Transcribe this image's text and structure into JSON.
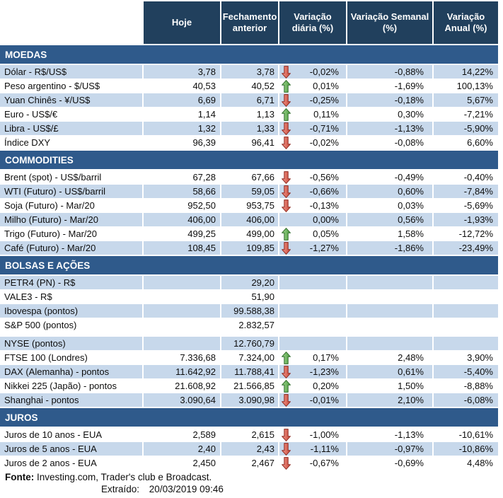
{
  "colors": {
    "header_bg": "#21405D",
    "section_bg": "#2F5A8B",
    "row_shaded": "#C7D8EB",
    "arrow_up_fill": "#5FAE54",
    "arrow_up_stroke": "#2E6B2A",
    "arrow_down_fill": "#E06A5C",
    "arrow_down_stroke": "#8F2A21"
  },
  "header": {
    "columns": [
      "Hoje",
      "Fechamento anterior",
      "Variação diária (%)",
      "Variação Semanal (%)",
      "Variação Anual (%)"
    ]
  },
  "sections": [
    {
      "id": "moedas",
      "title": "MOEDAS",
      "rows": [
        {
          "label": "Dólar - R$/US$",
          "hoje": "3,78",
          "fech": "3,78",
          "arrow": "down",
          "vdia": "-0,02%",
          "vsem": "-0,88%",
          "vanu": "14,22%",
          "shaded": true
        },
        {
          "label": "Peso argentino - $/US$",
          "hoje": "40,53",
          "fech": "40,52",
          "arrow": "up",
          "vdia": "0,01%",
          "vsem": "-1,69%",
          "vanu": "100,13%",
          "shaded": false
        },
        {
          "label": "Yuan Chinês - ¥/US$",
          "hoje": "6,69",
          "fech": "6,71",
          "arrow": "down",
          "vdia": "-0,25%",
          "vsem": "-0,18%",
          "vanu": "5,67%",
          "shaded": true
        },
        {
          "label": "Euro - US$/€",
          "hoje": "1,14",
          "fech": "1,13",
          "arrow": "up",
          "vdia": "0,11%",
          "vsem": "0,30%",
          "vanu": "-7,21%",
          "shaded": false
        },
        {
          "label": "Libra - US$/£",
          "hoje": "1,32",
          "fech": "1,33",
          "arrow": "down",
          "vdia": "-0,71%",
          "vsem": "-1,13%",
          "vanu": "-5,90%",
          "shaded": true
        },
        {
          "label": "Índice DXY",
          "hoje": "96,39",
          "fech": "96,41",
          "arrow": "down",
          "vdia": "-0,02%",
          "vsem": "-0,08%",
          "vanu": "6,60%",
          "shaded": false
        }
      ]
    },
    {
      "id": "commodities",
      "title": "COMMODITIES",
      "rows": [
        {
          "label": "Brent (spot) - US$/barril",
          "hoje": "67,28",
          "fech": "67,66",
          "arrow": "down",
          "vdia": "-0,56%",
          "vsem": "-0,49%",
          "vanu": "-0,40%",
          "shaded": false
        },
        {
          "label": "WTI (Futuro) - US$/barril",
          "hoje": "58,66",
          "fech": "59,05",
          "arrow": "down",
          "vdia": "-0,66%",
          "vsem": "0,60%",
          "vanu": "-7,84%",
          "shaded": true
        },
        {
          "label": "Soja (Futuro) - Mar/20",
          "hoje": "952,50",
          "fech": "953,75",
          "arrow": "down",
          "vdia": "-0,13%",
          "vsem": "0,03%",
          "vanu": "-5,69%",
          "shaded": false
        },
        {
          "label": "Milho (Futuro) - Mar/20",
          "hoje": "406,00",
          "fech": "406,00",
          "arrow": "",
          "vdia": "0,00%",
          "vsem": "0,56%",
          "vanu": "-1,93%",
          "shaded": true
        },
        {
          "label": "Trigo (Futuro) - Mar/20",
          "hoje": "499,25",
          "fech": "499,00",
          "arrow": "up",
          "vdia": "0,05%",
          "vsem": "1,58%",
          "vanu": "-12,72%",
          "shaded": false
        },
        {
          "label": "Café (Futuro) - Mar/20",
          "hoje": "108,45",
          "fech": "109,85",
          "arrow": "down",
          "vdia": "-1,27%",
          "vsem": "-1,86%",
          "vanu": "-23,49%",
          "shaded": true
        }
      ]
    },
    {
      "id": "bolsas-e-acoes",
      "title": "BOLSAS E AÇÕES",
      "rows": [
        {
          "label": "PETR4 (PN) - R$",
          "hoje": "",
          "fech": "29,20",
          "arrow": "",
          "vdia": "",
          "vsem": "",
          "vanu": "",
          "shaded": true
        },
        {
          "label": "VALE3 - R$",
          "hoje": "",
          "fech": "51,90",
          "arrow": "",
          "vdia": "",
          "vsem": "",
          "vanu": "",
          "shaded": false
        },
        {
          "label": "Ibovespa (pontos)",
          "hoje": "",
          "fech": "99.588,38",
          "arrow": "",
          "vdia": "",
          "vsem": "",
          "vanu": "",
          "shaded": true
        },
        {
          "label": "S&P 500 (pontos)",
          "hoje": "",
          "fech": "2.832,57",
          "arrow": "",
          "vdia": "",
          "vsem": "",
          "vanu": "",
          "shaded": false
        },
        {
          "label": "NYSE (pontos)",
          "hoje": "",
          "fech": "12.760,79",
          "arrow": "",
          "vdia": "",
          "vsem": "",
          "vanu": "",
          "shaded": true,
          "spacer_before": true
        },
        {
          "label": "FTSE 100 (Londres)",
          "hoje": "7.336,68",
          "fech": "7.324,00",
          "arrow": "up",
          "vdia": "0,17%",
          "vsem": "2,48%",
          "vanu": "3,90%",
          "shaded": false
        },
        {
          "label": "DAX (Alemanha) - pontos",
          "hoje": "11.642,92",
          "fech": "11.788,41",
          "arrow": "down",
          "vdia": "-1,23%",
          "vsem": "0,61%",
          "vanu": "-5,40%",
          "shaded": true
        },
        {
          "label": "Nikkei 225 (Japão) - pontos",
          "hoje": "21.608,92",
          "fech": "21.566,85",
          "arrow": "up",
          "vdia": "0,20%",
          "vsem": "1,50%",
          "vanu": "-8,88%",
          "shaded": false
        },
        {
          "label": "Shanghai - pontos",
          "hoje": "3.090,64",
          "fech": "3.090,98",
          "arrow": "down",
          "vdia": "-0,01%",
          "vsem": "2,10%",
          "vanu": "-6,08%",
          "shaded": true
        }
      ]
    },
    {
      "id": "juros",
      "title": "JUROS",
      "rows": [
        {
          "label": "Juros de 10 anos - EUA",
          "hoje": "2,589",
          "fech": "2,615",
          "arrow": "down",
          "vdia": "-1,00%",
          "vsem": "-1,13%",
          "vanu": "-10,61%",
          "shaded": false
        },
        {
          "label": "Juros de 5 anos - EUA",
          "hoje": "2,40",
          "fech": "2,43",
          "arrow": "down",
          "vdia": "-1,11%",
          "vsem": "-0,97%",
          "vanu": "-10,86%",
          "shaded": true
        },
        {
          "label": "Juros de 2 anos - EUA",
          "hoje": "2,450",
          "fech": "2,467",
          "arrow": "down",
          "vdia": "-0,67%",
          "vsem": "-0,69%",
          "vanu": "4,48%",
          "shaded": false
        }
      ]
    }
  ],
  "footer": {
    "source_label": "Fonte:",
    "source_text": "Investing.com, Trader's club e Broadcast.",
    "extracted_label": "Extraído:",
    "extracted_value": "20/03/2019 09:46"
  }
}
